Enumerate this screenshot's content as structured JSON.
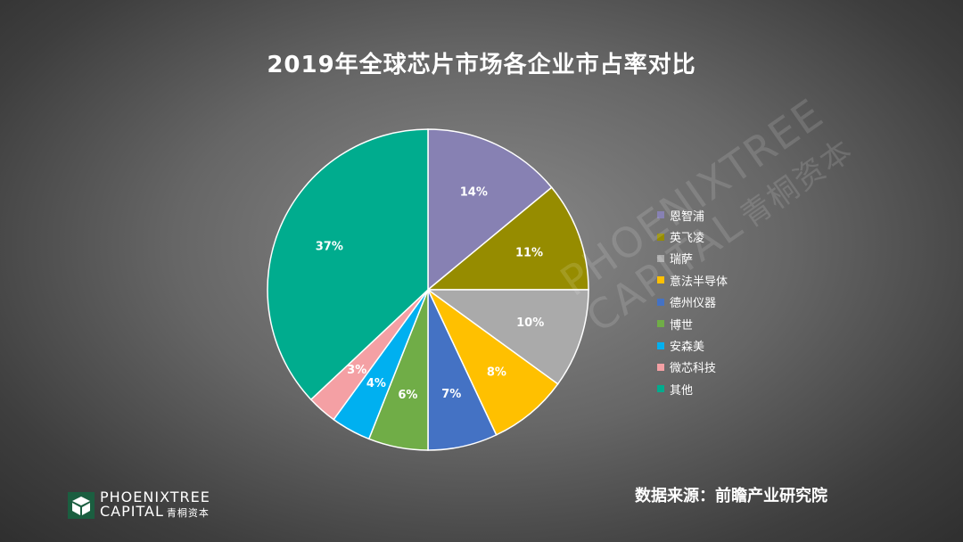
{
  "title": "2019年全球芯片市场各企业市占率对比",
  "source": "数据来源：前瞻产业研究院",
  "brand": {
    "line1": "PHOENIXTREE",
    "line2": "CAPITAL",
    "cn": "青桐资本"
  },
  "watermark": {
    "line1": "PHOENIXTREE",
    "line2": "CAPITAL",
    "cn": "青桐资本"
  },
  "chart_data": {
    "type": "pie",
    "title": "2019年全球芯片市场各企业市占率对比",
    "unit": "%",
    "legend_position": "right",
    "slices": [
      {
        "label": "恩智浦",
        "value": 14,
        "display": "14%",
        "color": "#8781b3"
      },
      {
        "label": "英飞凌",
        "value": 11,
        "display": "11%",
        "color": "#968c00"
      },
      {
        "label": "瑞萨",
        "value": 10,
        "display": "10%",
        "color": "#aaaaaa"
      },
      {
        "label": "意法半导体",
        "value": 8,
        "display": "8%",
        "color": "#ffc000"
      },
      {
        "label": "德州仪器",
        "value": 7,
        "display": "7%",
        "color": "#4472c4"
      },
      {
        "label": "博世",
        "value": 6,
        "display": "6%",
        "color": "#70ad47"
      },
      {
        "label": "安森美",
        "value": 4,
        "display": "4%",
        "color": "#00b0f0"
      },
      {
        "label": "微芯科技",
        "value": 3,
        "display": "3%",
        "color": "#f4a0a4"
      },
      {
        "label": "其他",
        "value": 37,
        "display": "37%",
        "color": "#00ac8e"
      }
    ]
  }
}
